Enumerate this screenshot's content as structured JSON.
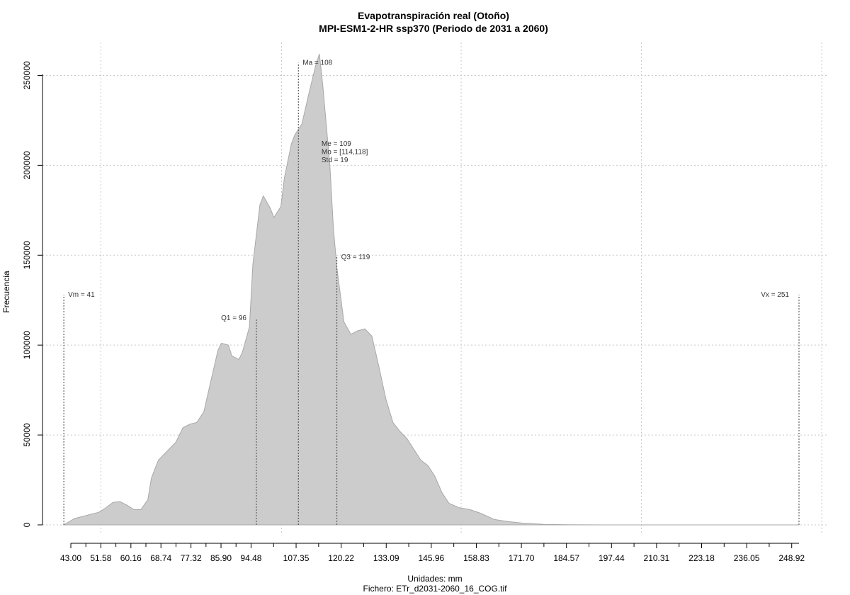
{
  "chart_data": {
    "type": "area",
    "title": "Evapotranspiración real (Otoño)",
    "subtitle": "MPI-ESM1-2-HR ssp370 (Periodo de 2031 a 2060)",
    "xlabel": "Unidades: mm",
    "ylabel": "Frecuencia",
    "footer": "Fichero: ETr_d2031-2060_16_COG.tif",
    "xlim": [
      43,
      251
    ],
    "ylim": [
      0,
      262000
    ],
    "fill_color": "#cccccc",
    "x_ticks": [
      43.0,
      51.58,
      60.16,
      68.74,
      77.32,
      85.9,
      94.48,
      107.35,
      120.22,
      133.09,
      145.96,
      158.83,
      171.7,
      184.57,
      197.44,
      210.31,
      223.18,
      236.05,
      248.92
    ],
    "x_tick_labels": [
      "43.00",
      "51.58",
      "60.16",
      "68.74",
      "77.32",
      "85.90",
      "94.48",
      "107.35",
      "120.22",
      "133.09",
      "145.96",
      "158.83",
      "171.70",
      "184.57",
      "197.44",
      "210.31",
      "223.18",
      "236.05",
      "248.92"
    ],
    "y_ticks": [
      0,
      50000,
      100000,
      150000,
      200000,
      250000
    ],
    "y_tick_labels": [
      "0",
      "50000",
      "100000",
      "150000",
      "200000",
      "250000"
    ],
    "grid": true,
    "x": [
      41,
      44,
      48,
      51,
      53,
      55,
      57,
      59,
      61,
      63,
      65,
      66,
      68,
      70,
      73,
      75,
      77,
      79,
      81,
      83,
      85,
      86,
      88,
      89,
      91,
      92,
      94,
      95,
      97,
      98,
      100,
      101,
      103,
      104,
      106,
      107,
      109,
      111,
      113,
      114,
      115,
      117,
      118,
      119,
      121,
      123,
      125,
      127,
      129,
      131,
      133,
      135,
      137,
      139,
      141,
      143,
      145,
      147,
      149,
      151,
      154,
      157,
      160,
      164,
      168,
      172,
      178,
      185,
      195,
      210,
      230,
      251
    ],
    "y": [
      0,
      3500,
      5500,
      7000,
      9500,
      12500,
      13000,
      11000,
      8500,
      8500,
      14000,
      26000,
      36000,
      40000,
      46000,
      54000,
      56000,
      57000,
      63000,
      80000,
      97000,
      101000,
      100000,
      94000,
      92000,
      96000,
      110000,
      145000,
      178000,
      183000,
      176000,
      171000,
      177000,
      193000,
      212000,
      217000,
      223000,
      240000,
      256000,
      262000,
      244000,
      200000,
      165000,
      143000,
      113000,
      106000,
      108000,
      109000,
      105000,
      88000,
      70000,
      57000,
      52000,
      48000,
      42000,
      36000,
      33000,
      27000,
      18000,
      12000,
      9500,
      8500,
      6500,
      3000,
      1800,
      1000,
      300,
      100,
      0,
      0,
      0,
      0
    ],
    "annotations": [
      {
        "label": "Vm = 41",
        "x": 41,
        "line_top": 128000,
        "text_align": "left"
      },
      {
        "label": "Q1 = 96",
        "x": 96,
        "line_top": 115000,
        "text_align": "right"
      },
      {
        "label": "Ma = 108",
        "x": 108,
        "line_top": 257000,
        "text_align": "left"
      },
      {
        "label": "Q3 = 119",
        "x": 119,
        "line_top": 149000,
        "text_align": "left"
      },
      {
        "label": "Vx = 251",
        "x": 251,
        "line_top": 128000,
        "text_align": "right"
      }
    ],
    "stats_block": {
      "x": 114,
      "lines": [
        "Me = 109",
        "Mo = [114,118]",
        "Std = 19"
      ]
    }
  }
}
